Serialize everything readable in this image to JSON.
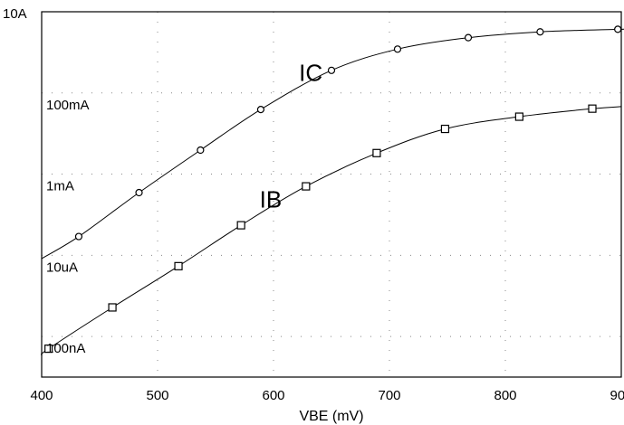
{
  "chart_data": {
    "type": "line",
    "xlabel": "VBE (mV)",
    "ylabel": "",
    "xlim": [
      400,
      900
    ],
    "ylim": [
      1e-08,
      10
    ],
    "y_scale": "log",
    "grid": true,
    "x_ticks": [
      {
        "value": 400,
        "label": "400"
      },
      {
        "value": 500,
        "label": "500"
      },
      {
        "value": 600,
        "label": "600"
      },
      {
        "value": 700,
        "label": "700"
      },
      {
        "value": 800,
        "label": "800"
      },
      {
        "value": 900,
        "label": "900"
      }
    ],
    "y_ticks": [
      {
        "value": 10,
        "label": "10A"
      },
      {
        "value": 0.1,
        "label": "100mA"
      },
      {
        "value": 0.001,
        "label": "1mA"
      },
      {
        "value": 1e-05,
        "label": "10uA"
      },
      {
        "value": 1e-07,
        "label": "100nA"
      }
    ],
    "series": [
      {
        "name": "IC",
        "marker": "circle",
        "color": "#000000",
        "x": [
          400,
          432,
          484,
          537,
          589,
          650,
          707,
          768,
          830,
          897,
          900
        ],
        "y": [
          8.3e-06,
          2.9e-05,
          0.00035,
          0.0039,
          0.039,
          0.36,
          1.2,
          2.3,
          3.2,
          3.7,
          3.7
        ]
      },
      {
        "name": "IB",
        "marker": "square",
        "color": "#000000",
        "x": [
          400,
          406,
          461,
          518,
          572,
          628,
          689,
          748,
          812,
          875,
          900
        ],
        "y": [
          3.5e-08,
          5e-08,
          5.2e-07,
          5.4e-06,
          5.5e-05,
          0.0005,
          0.0033,
          0.013,
          0.026,
          0.041,
          0.046
        ]
      }
    ]
  }
}
